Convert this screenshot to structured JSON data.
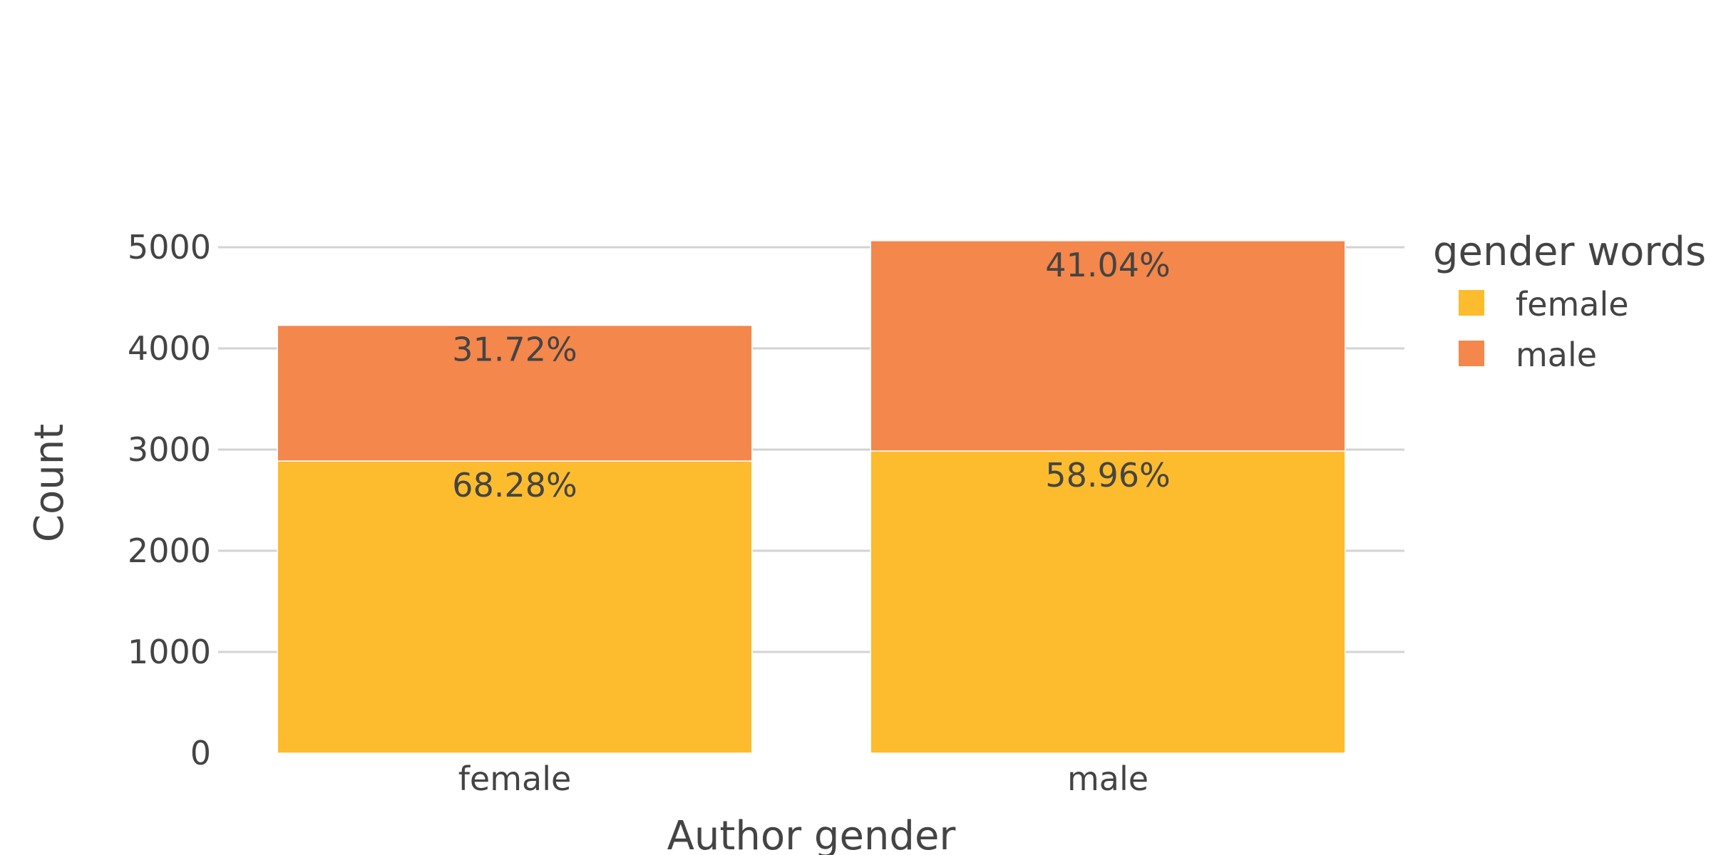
{
  "chart_data": {
    "type": "bar",
    "stacked": true,
    "categories": [
      "female",
      "male"
    ],
    "series": [
      {
        "name": "female",
        "color": "#FCBC2D",
        "values": [
          2887,
          2986
        ],
        "labels": [
          "68.28%",
          "58.96%"
        ]
      },
      {
        "name": "male",
        "color": "#F4874B",
        "values": [
          1341,
          2079
        ],
        "labels": [
          "31.72%",
          "41.04%"
        ]
      }
    ],
    "xlabel": "Author gender",
    "ylabel": "Count",
    "ylim": [
      0,
      5000
    ],
    "yticks": [
      0,
      1000,
      2000,
      3000,
      4000,
      5000
    ],
    "grid": true,
    "legend": {
      "title": "gender words",
      "placement": "top-right"
    }
  }
}
